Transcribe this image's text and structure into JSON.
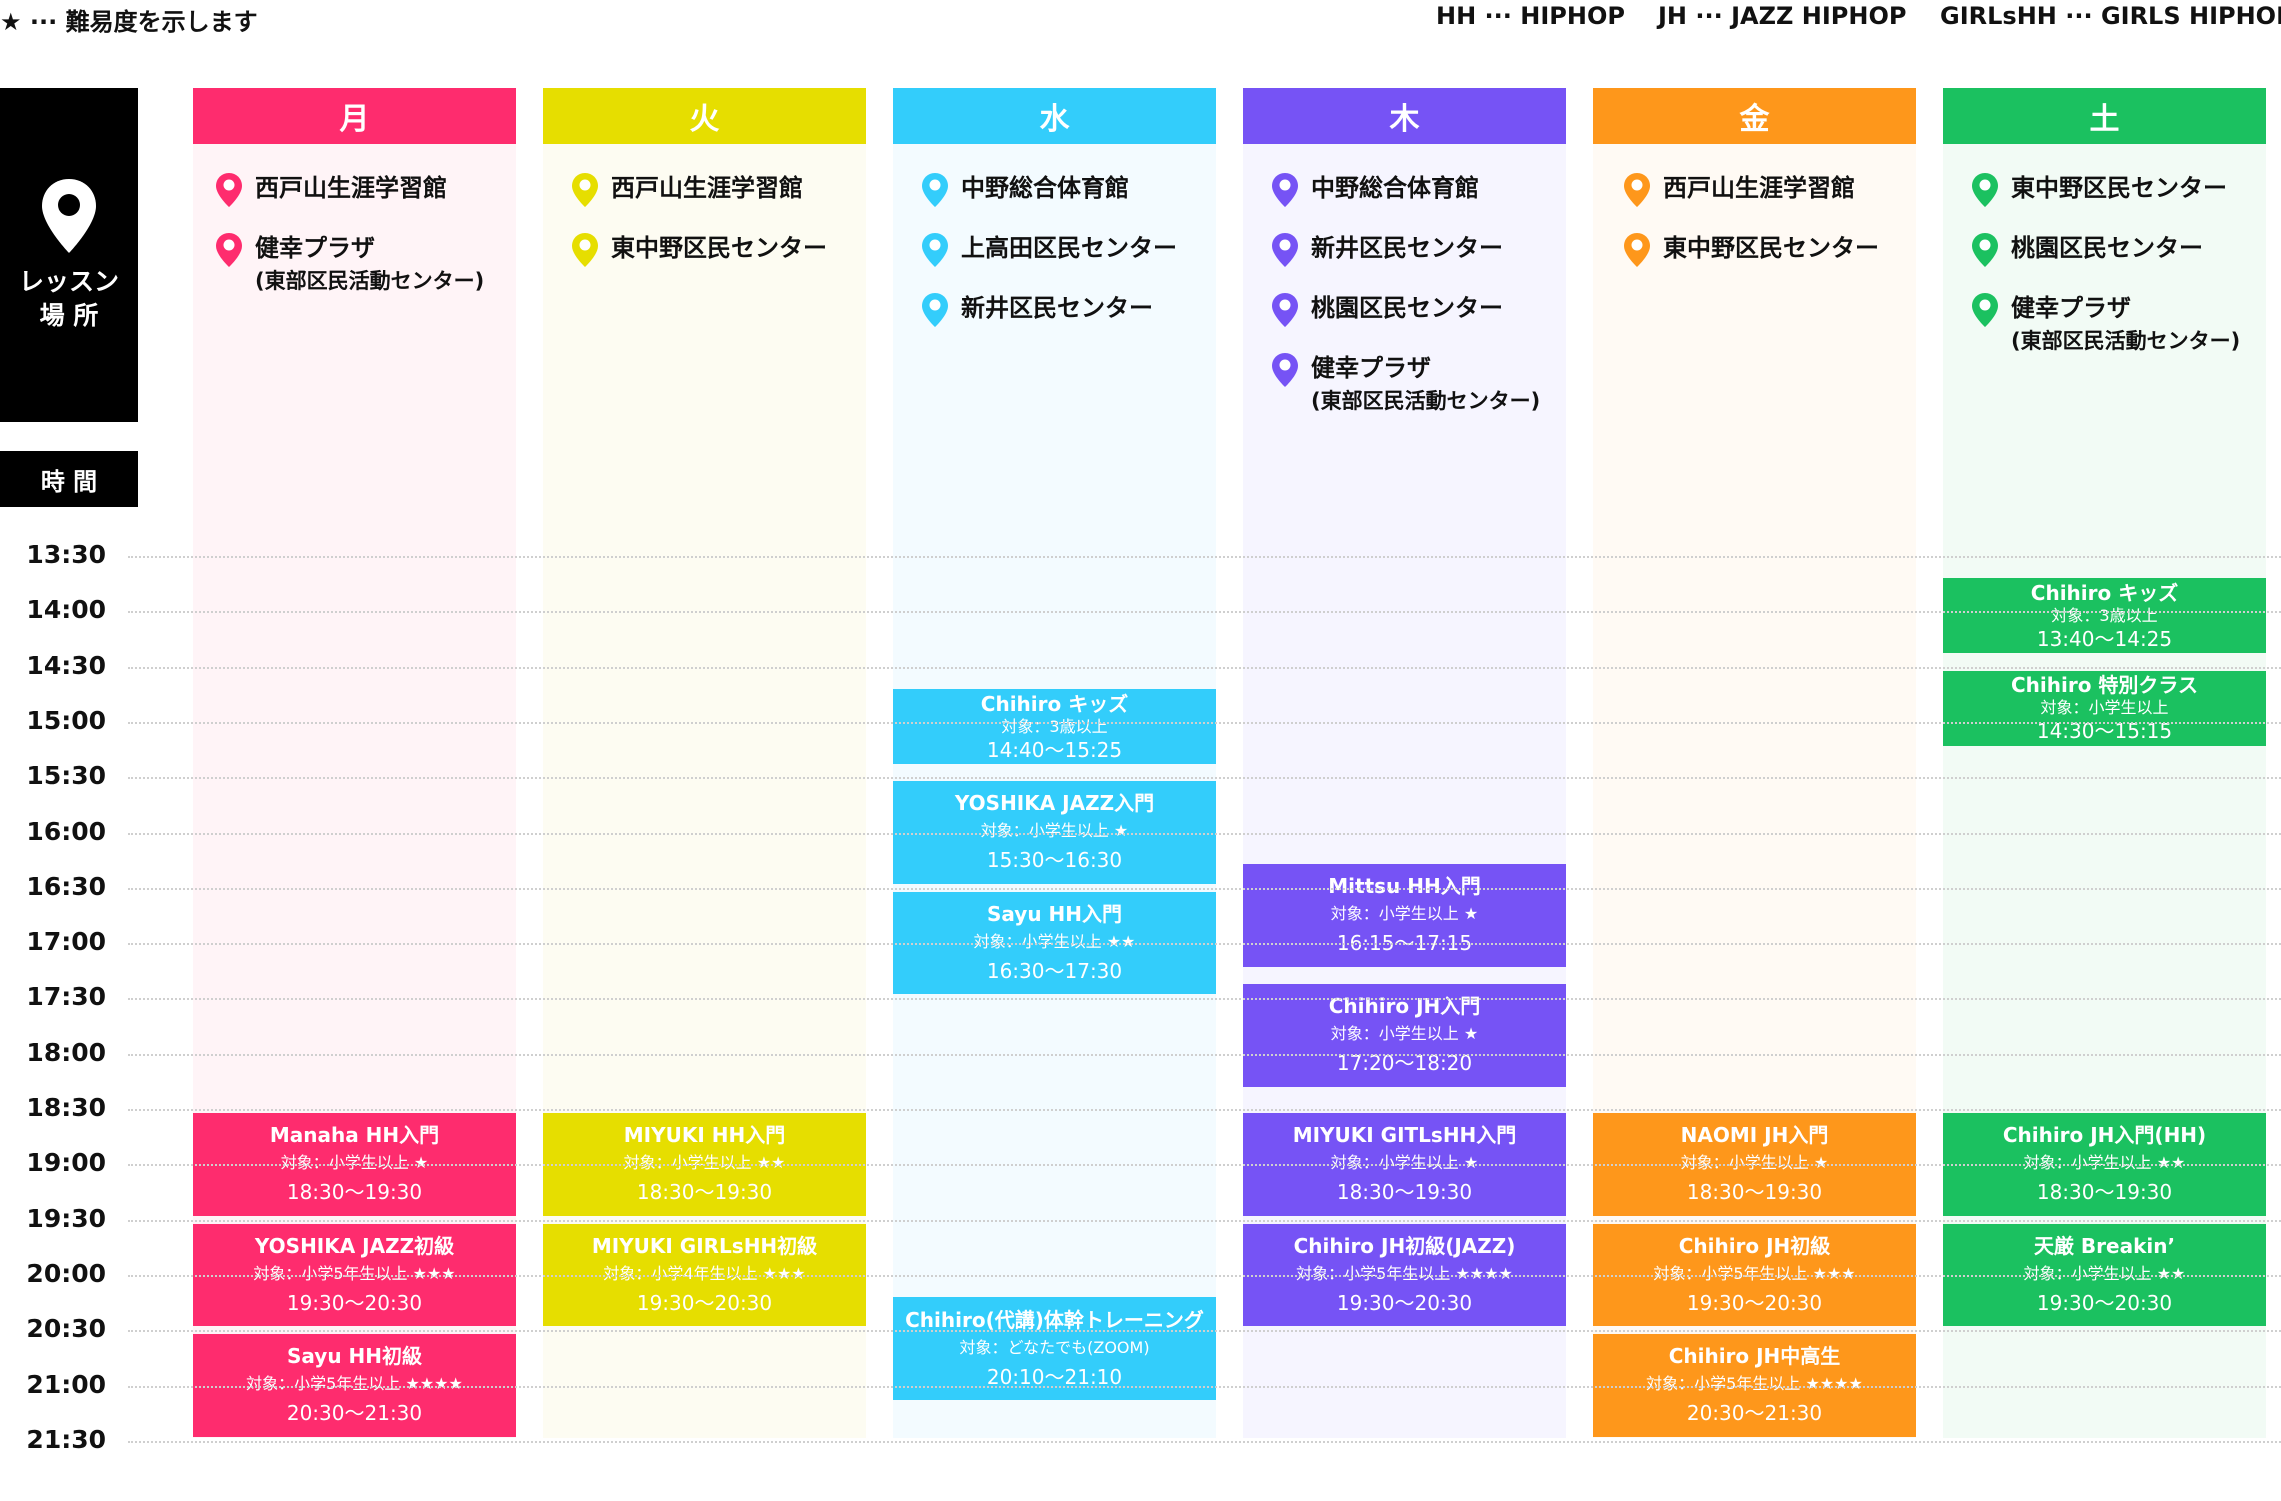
{
  "legend": {
    "difficulty": "★ ··· 難易度を示します",
    "abbr": [
      {
        "key": "HH",
        "value": "HIPHOP"
      },
      {
        "key": "JH",
        "value": "JAZZ HIPHOP"
      },
      {
        "key": "GIRLsHH",
        "value": "GIRLS HIPHOP"
      }
    ],
    "separator": "···"
  },
  "side": {
    "place_icon": "location-pin-icon",
    "place_label_1": "レッスン",
    "place_label_2": "場 所",
    "time_label": "時 間"
  },
  "times": [
    "13:30",
    "14:00",
    "14:30",
    "15:00",
    "15:30",
    "16:00",
    "16:30",
    "17:00",
    "17:30",
    "18:00",
    "18:30",
    "19:00",
    "19:30",
    "20:00",
    "20:30",
    "21:00",
    "21:30"
  ],
  "days": [
    {
      "name": "月",
      "color": "#fe2c6e",
      "bg": "#fff4f7",
      "venues": [
        {
          "name": "西戸山生涯学習館",
          "sub": ""
        },
        {
          "name": "健幸プラザ",
          "sub": "(東部区民活動センター)"
        }
      ],
      "classes": [
        {
          "name": "Manaha HH入門",
          "target": "対象：小学生以上 ★",
          "time": "18:30〜19:30"
        },
        {
          "name": "YOSHIKA JAZZ初級",
          "target": "対象：小学5年生以上 ★★★",
          "time": "19:30〜20:30"
        },
        {
          "name": "Sayu HH初級",
          "target": "対象：小学5年生以上 ★★★★",
          "time": "20:30〜21:30"
        }
      ]
    },
    {
      "name": "火",
      "color": "#e6de00",
      "bg": "#fdfcf2",
      "venues": [
        {
          "name": "西戸山生涯学習館",
          "sub": ""
        },
        {
          "name": "東中野区民センター",
          "sub": ""
        }
      ],
      "classes": [
        {
          "name": "MIYUKI HH入門",
          "target": "対象：小学生以上 ★★",
          "time": "18:30〜19:30"
        },
        {
          "name": "MIYUKI GIRLsHH初級",
          "target": "対象：小学4年生以上 ★★★",
          "time": "19:30〜20:30"
        }
      ]
    },
    {
      "name": "水",
      "color": "#33cdfb",
      "bg": "#f3fbff",
      "venues": [
        {
          "name": "中野総合体育館",
          "sub": ""
        },
        {
          "name": "上高田区民センター",
          "sub": ""
        },
        {
          "name": "新井区民センター",
          "sub": ""
        }
      ],
      "classes": [
        {
          "name": "Chihiro キッズ",
          "target": "対象：3歳以上",
          "time": "14:40〜15:25"
        },
        {
          "name": "YOSHIKA JAZZ入門",
          "target": "対象：小学生以上 ★",
          "time": "15:30〜16:30"
        },
        {
          "name": "Sayu HH入門",
          "target": "対象：小学生以上 ★★",
          "time": "16:30〜17:30"
        },
        {
          "name": "Chihiro(代講)体幹トレーニング",
          "target": "対象：どなたでも(ZOOM)",
          "time": "20:10〜21:10"
        }
      ]
    },
    {
      "name": "木",
      "color": "#7653f5",
      "bg": "#f6f5ff",
      "venues": [
        {
          "name": "中野総合体育館",
          "sub": ""
        },
        {
          "name": "新井区民センター",
          "sub": ""
        },
        {
          "name": "桃園区民センター",
          "sub": ""
        },
        {
          "name": "健幸プラザ",
          "sub": "(東部区民活動センター)"
        }
      ],
      "classes": [
        {
          "name": "Mittsu HH入門",
          "target": "対象：小学生以上 ★",
          "time": "16:15〜17:15"
        },
        {
          "name": "Chihiro JH入門",
          "target": "対象：小学生以上 ★",
          "time": "17:20〜18:20"
        },
        {
          "name": "MIYUKI GITLsHH入門",
          "target": "対象：小学生以上 ★",
          "time": "18:30〜19:30"
        },
        {
          "name": "Chihiro JH初級(JAZZ)",
          "target": "対象：小学5年生以上 ★★★★",
          "time": "19:30〜20:30"
        }
      ]
    },
    {
      "name": "金",
      "color": "#fe971b",
      "bg": "#fffaf4",
      "venues": [
        {
          "name": "西戸山生涯学習館",
          "sub": ""
        },
        {
          "name": "東中野区民センター",
          "sub": ""
        }
      ],
      "classes": [
        {
          "name": "NAOMI JH入門",
          "target": "対象：小学生以上 ★",
          "time": "18:30〜19:30"
        },
        {
          "name": "Chihiro JH初級",
          "target": "対象：小学5年生以上 ★★★",
          "time": "19:30〜20:30"
        },
        {
          "name": "Chihiro JH中高生",
          "target": "対象：小学5年生以上 ★★★★",
          "time": "20:30〜21:30"
        }
      ]
    },
    {
      "name": "土",
      "color": "#1bc160",
      "bg": "#f2fbf5",
      "venues": [
        {
          "name": "東中野区民センター",
          "sub": ""
        },
        {
          "name": "桃園区民センター",
          "sub": ""
        },
        {
          "name": "健幸プラザ",
          "sub": "(東部区民活動センター)"
        }
      ],
      "classes": [
        {
          "name": "Chihiro キッズ",
          "target": "対象：3歳以上",
          "time": "13:40〜14:25"
        },
        {
          "name": "Chihiro 特別クラス",
          "target": "対象：小学生以上",
          "time": "14:30〜15:15"
        },
        {
          "name": "Chihiro JH入門(HH)",
          "target": "対象：小学生以上 ★★",
          "time": "18:30〜19:30"
        },
        {
          "name": "天厳 Breakin’",
          "target": "対象：小学生以上 ★★",
          "time": "19:30〜20:30"
        }
      ]
    }
  ]
}
